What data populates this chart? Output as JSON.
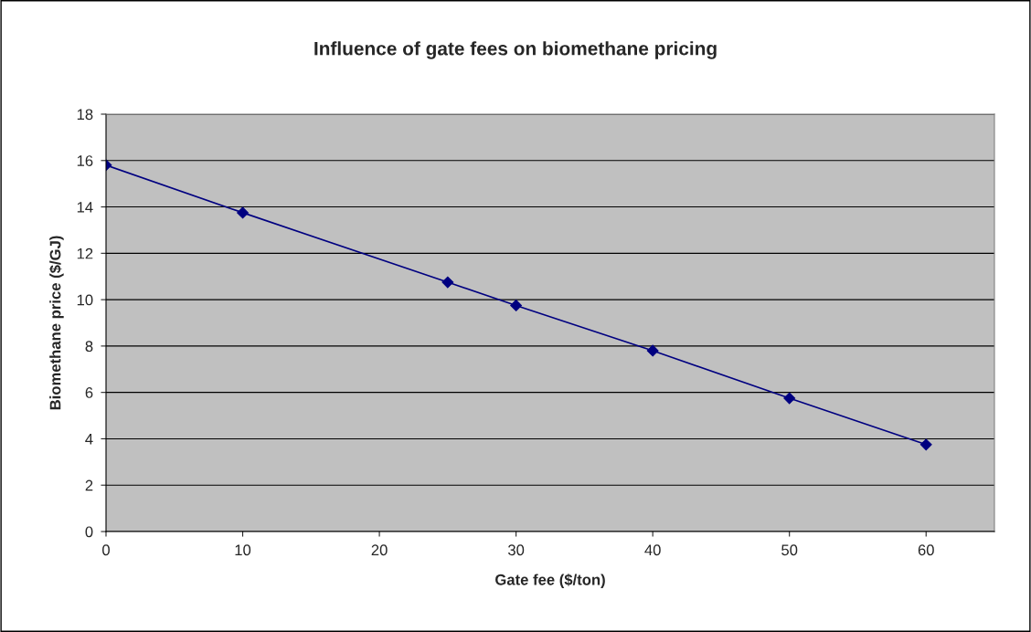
{
  "chart_data": {
    "type": "line",
    "title": "Influence of gate fees on biomethane pricing",
    "xlabel": "Gate fee ($/ton)",
    "ylabel": "Biomethane price ($/GJ)",
    "x": [
      0,
      10,
      25,
      30,
      40,
      50,
      60
    ],
    "series": [
      {
        "color": "#000080",
        "values": [
          15.8,
          13.75,
          10.75,
          9.75,
          7.8,
          5.75,
          3.75
        ]
      }
    ],
    "xlim": [
      0,
      65
    ],
    "xticks": [
      0,
      10,
      20,
      30,
      40,
      50,
      60
    ],
    "ylim": [
      0,
      18
    ],
    "yticks": [
      0,
      2,
      4,
      6,
      8,
      10,
      12,
      14,
      16,
      18
    ],
    "grid": "y",
    "marker": "diamond",
    "line_style": "solid"
  }
}
